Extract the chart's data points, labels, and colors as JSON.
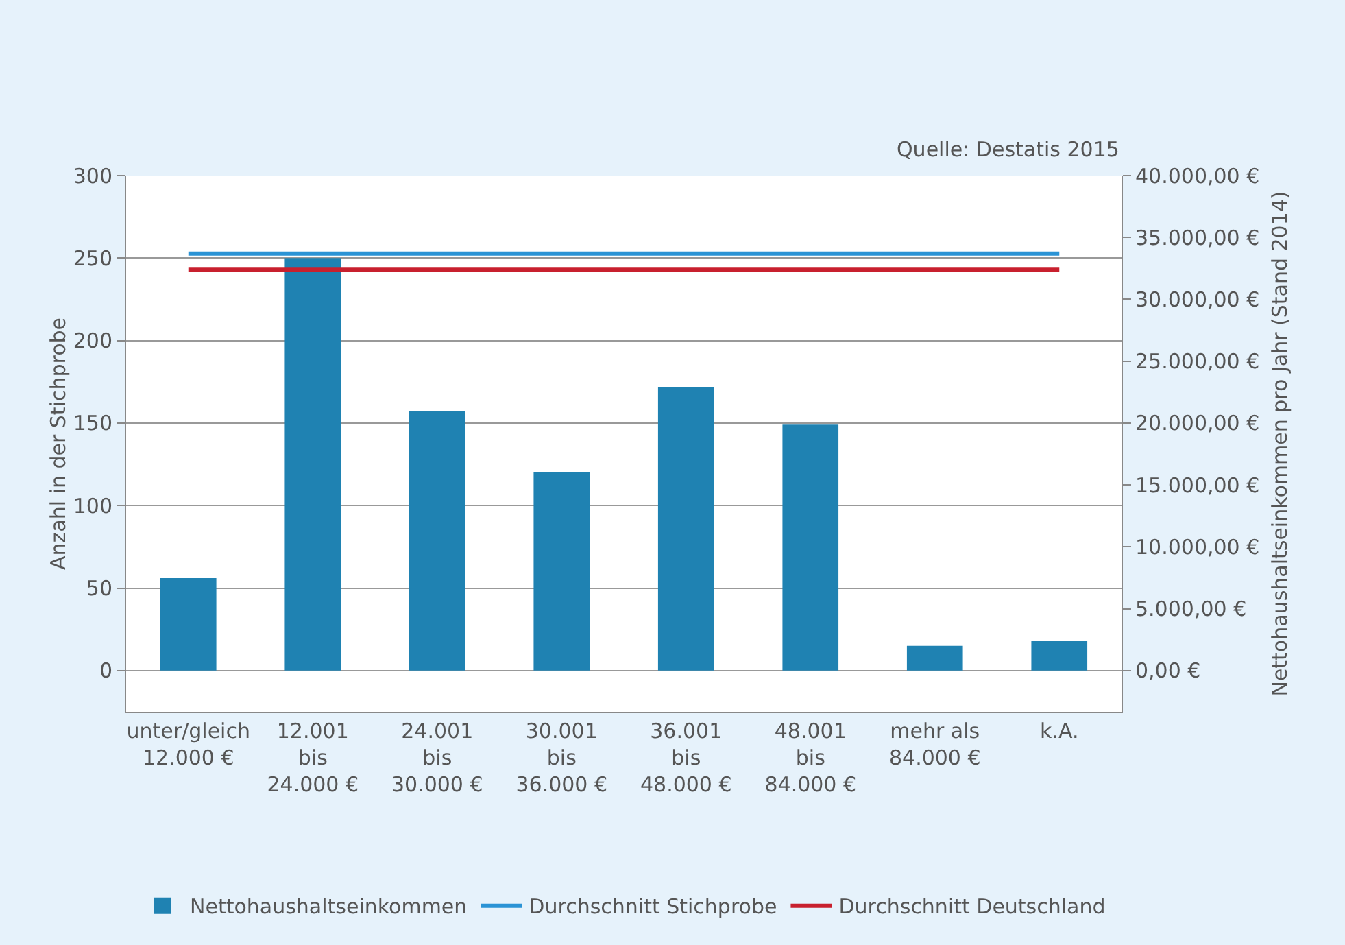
{
  "chart_data": {
    "type": "bar",
    "categories": [
      "unter/gleich\n12.000 €",
      "12.001\nbis\n24.000 €",
      "24.001\nbis\n30.000 €",
      "30.001\nbis\n36.000 €",
      "36.001\nbis\n48.000 €",
      "48.001\nbis\n84.000 €",
      "mehr als\n84.000 €",
      "k.A."
    ],
    "series": [
      {
        "name": "Nettohaushaltseinkommen",
        "color": "#1f82b2",
        "values": [
          56,
          250,
          157,
          120,
          172,
          149,
          15,
          18
        ]
      },
      {
        "name": "Durchschnitt Stichprobe",
        "type": "line",
        "axis": "y2",
        "color": "#2a93d5",
        "values": [
          33700,
          33700,
          33700,
          33700,
          33700,
          33700,
          33700,
          33700
        ]
      },
      {
        "name": "Durchschnitt Deutschland",
        "type": "line",
        "axis": "y2",
        "color": "#c8202e",
        "values": [
          32400,
          32400,
          32400,
          32400,
          32400,
          32400,
          32400,
          32400
        ]
      }
    ],
    "ylabel": "Anzahl in der Stichprobe",
    "y2label": "Nettohaushaltseinkommen pro Jahr (Stand 2014)",
    "ylim": [
      -25,
      300
    ],
    "yticks": [
      0,
      50,
      100,
      150,
      200,
      250,
      300
    ],
    "y2lim": [
      -3333,
      40000
    ],
    "y2ticks": [
      {
        "value": 0,
        "label": "0,00 €"
      },
      {
        "value": 5000,
        "label": "5.000,00 €"
      },
      {
        "value": 10000,
        "label": "10.000,00 €"
      },
      {
        "value": 15000,
        "label": "15.000,00 €"
      },
      {
        "value": 20000,
        "label": "20.000,00 €"
      },
      {
        "value": 25000,
        "label": "25.000,00 €"
      },
      {
        "value": 30000,
        "label": "30.000,00 €"
      },
      {
        "value": 35000,
        "label": "35.000,00 €"
      },
      {
        "value": 40000,
        "label": "40.000,00 €"
      }
    ],
    "annotations": [
      "Quelle: Destatis 2015"
    ],
    "grid": "y",
    "legend": "bottom",
    "marker": "none",
    "line_style": "solid"
  }
}
